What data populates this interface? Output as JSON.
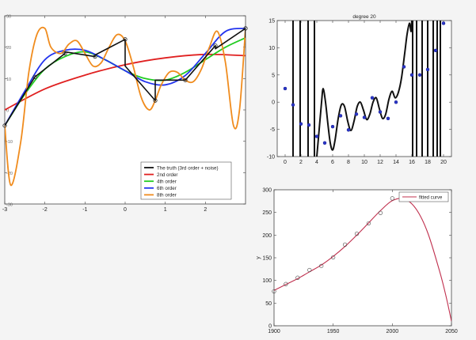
{
  "chart_data": [
    {
      "type": "line",
      "title": "",
      "xlabel": "",
      "ylabel": "",
      "xlim": [
        -3,
        3
      ],
      "ylim": [
        -30,
        30
      ],
      "xticks": [
        -3,
        -2,
        -1,
        0,
        1,
        2
      ],
      "xtick_labels": [
        "-3",
        "-2",
        "-1",
        "0",
        "1",
        "2"
      ],
      "yticks": [
        30,
        20,
        10,
        0,
        -10,
        -20,
        -30
      ],
      "ytick_labels": [
        "30",
        "20",
        "10",
        "0",
        "-10",
        "-20",
        "-30"
      ],
      "legend_position": "bottom-right",
      "points": {
        "x": [
          -3,
          -2.25,
          -1.5,
          -0.75,
          0,
          0.75,
          1.5,
          2.25,
          3
        ],
        "y": [
          -5,
          10.5,
          18,
          17,
          22.5,
          3,
          9.5,
          20.5,
          26
        ]
      },
      "series": [
        {
          "name": "The truth (3rd order + noise)",
          "color": "#111111",
          "x": [
            -3,
            -2.25,
            -2.25,
            -1.5,
            -1.5,
            -0.75,
            -0.75,
            0,
            0,
            0.75,
            0.75,
            1.5,
            1.5,
            2.25,
            2.25,
            3,
            3
          ],
          "y": [
            -5,
            10.5,
            10.5,
            18,
            18.5,
            17,
            17.5,
            22.5,
            14,
            3,
            9.5,
            9.5,
            9.5,
            20.5,
            19.5,
            26,
            23
          ]
        },
        {
          "name": "2nd order",
          "color": "#e02020",
          "x": [
            -3,
            -2,
            -1,
            0,
            1,
            2,
            3
          ],
          "y": [
            0,
            6.7,
            11.1,
            14.4,
            16.6,
            17.7,
            17.3
          ]
        },
        {
          "name": "4th order",
          "color": "#22cc22",
          "x": [
            -3,
            -2.5,
            -2,
            -1.5,
            -1,
            -0.5,
            0,
            0.5,
            1,
            1.5,
            2,
            2.5,
            3
          ],
          "y": [
            -5,
            5,
            13,
            17,
            18.5,
            16,
            12.5,
            10,
            9.5,
            12,
            16,
            20,
            23
          ]
        },
        {
          "name": "6th order",
          "color": "#2233ee",
          "x": [
            -3,
            -2.5,
            -2,
            -1.5,
            -1,
            -0.5,
            0,
            0.5,
            1,
            1.5,
            2,
            2.5,
            3
          ],
          "y": [
            -5,
            6,
            16,
            19,
            19,
            16,
            12.5,
            9,
            8,
            11,
            18,
            25,
            26
          ]
        },
        {
          "name": "8th order",
          "color": "#f08c1e",
          "x": [
            -3,
            -2.85,
            -2.6,
            -2.4,
            -2.2,
            -2,
            -1.85,
            -1.6,
            -1.4,
            -1.2,
            -1,
            -0.8,
            -0.6,
            -0.4,
            -0.2,
            0,
            0.2,
            0.4,
            0.6,
            0.75,
            0.9,
            1.1,
            1.3,
            1.5,
            1.7,
            1.9,
            2.1,
            2.3,
            2.5,
            2.7,
            2.85,
            3
          ],
          "y": [
            -5,
            -24,
            -10,
            12,
            24,
            26,
            20,
            18,
            21,
            22,
            18,
            14,
            15,
            20,
            24,
            22,
            14,
            4,
            0,
            3,
            8,
            12,
            12,
            9.5,
            9,
            13,
            20,
            25,
            15,
            -5,
            0,
            26
          ]
        }
      ]
    },
    {
      "type": "line",
      "title": "degree 20",
      "xlabel": "",
      "ylabel": "",
      "xlim": [
        -1,
        21
      ],
      "ylim": [
        -10,
        15
      ],
      "xticks": [
        0,
        2,
        4,
        6,
        8,
        10,
        12,
        14,
        16,
        18,
        20
      ],
      "xtick_labels": [
        "0",
        "2",
        "4",
        "6",
        "8",
        "10",
        "12",
        "14",
        "16",
        "18",
        "20"
      ],
      "yticks": [
        15,
        10,
        5,
        0,
        -5,
        -10
      ],
      "ytick_labels": [
        "15",
        "10",
        "5",
        "0",
        "-5",
        "-10"
      ],
      "points": {
        "x": [
          0,
          1,
          2,
          3,
          4,
          5,
          6,
          7,
          8,
          9,
          10,
          11,
          12,
          13,
          14,
          15,
          16,
          17,
          18,
          19,
          20
        ],
        "y": [
          2.5,
          -0.5,
          -4,
          -4.2,
          -6.3,
          -7.5,
          -4.5,
          -2.5,
          -5.1,
          -2.2,
          -2.8,
          0.8,
          -1.8,
          -3,
          0,
          6.5,
          5,
          5,
          6,
          9.5,
          14.5
        ]
      },
      "curve": {
        "x": [
          4.0,
          4.3,
          4.6,
          4.8,
          5.1,
          5.4,
          5.7,
          6.0,
          6.3,
          6.7,
          7.1,
          7.5,
          7.9,
          8.3,
          8.7,
          9.1,
          9.5,
          9.9,
          10.3,
          10.7,
          11.1,
          11.5,
          11.9,
          12.3,
          12.7,
          13.1,
          13.5,
          13.9,
          14.3,
          14.7,
          15.1,
          15.4,
          15.7,
          15.9,
          16.0
        ],
        "y": [
          -10,
          -5,
          0,
          2.5,
          0,
          -4,
          -7.5,
          -8.8,
          -7,
          -3,
          -0.5,
          -0.8,
          -3.5,
          -5.2,
          -3.5,
          -0.8,
          0,
          -1.5,
          -3.2,
          -2.2,
          0,
          0.8,
          -1.2,
          -3,
          -2.2,
          0.5,
          2,
          0.8,
          1.8,
          4.5,
          9,
          12.5,
          14.5,
          13,
          15
        ]
      },
      "verticals": [
        1,
        1.9,
        2.9,
        3.7,
        16.1,
        16.6,
        17.3,
        18.0,
        18.7,
        19.2,
        19.6
      ]
    },
    {
      "type": "line",
      "title": "",
      "xlabel": "",
      "ylabel": "y",
      "xlim": [
        1900,
        2050
      ],
      "ylim": [
        0,
        300
      ],
      "xticks": [
        1900,
        1950,
        2000,
        2050
      ],
      "xtick_labels": [
        "1900",
        "1950",
        "2000",
        "2050"
      ],
      "yticks": [
        0,
        50,
        100,
        150,
        200,
        250,
        300
      ],
      "ytick_labels": [
        "0",
        "50",
        "100",
        "150",
        "200",
        "250",
        "300"
      ],
      "legend_position": "top-right",
      "points": {
        "x": [
          1900,
          1910,
          1920,
          1930,
          1940,
          1950,
          1960,
          1970,
          1980,
          1990,
          2000
        ],
        "y": [
          76,
          92,
          106,
          123,
          132,
          151,
          179,
          203,
          226,
          249,
          281
        ]
      },
      "series": [
        {
          "name": "fitted curve",
          "color": "#c0304e",
          "x": [
            1900,
            1910,
            1920,
            1930,
            1940,
            1950,
            1960,
            1970,
            1980,
            1990,
            2000,
            2010,
            2020,
            2030,
            2040,
            2045,
            2050
          ],
          "y": [
            78,
            91,
            104,
            119,
            134,
            153,
            175,
            200,
            227,
            254,
            276,
            280,
            258,
            205,
            120,
            70,
            10
          ]
        }
      ]
    }
  ]
}
